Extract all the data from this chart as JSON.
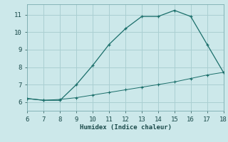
{
  "xlabel": "Humidex (Indice chaleur)",
  "ylabel": "",
  "bg_color": "#cce8ea",
  "grid_color": "#aacfd2",
  "line_color": "#1a6e6a",
  "xlim": [
    6,
    18
  ],
  "ylim": [
    5.5,
    11.6
  ],
  "xticks": [
    6,
    7,
    8,
    9,
    10,
    11,
    12,
    13,
    14,
    15,
    16,
    17,
    18
  ],
  "yticks": [
    6,
    7,
    8,
    9,
    10,
    11
  ],
  "line1_x": [
    6,
    7,
    8,
    9,
    10,
    11,
    12,
    13,
    14,
    15,
    16,
    17,
    18
  ],
  "line1_y": [
    6.2,
    6.1,
    6.1,
    7.0,
    8.1,
    9.3,
    10.2,
    10.9,
    10.9,
    11.25,
    10.9,
    9.3,
    7.7
  ],
  "line2_x": [
    6,
    7,
    8,
    9,
    10,
    11,
    12,
    13,
    14,
    15,
    16,
    17,
    18
  ],
  "line2_y": [
    6.2,
    6.1,
    6.15,
    6.25,
    6.4,
    6.55,
    6.7,
    6.85,
    7.0,
    7.15,
    7.35,
    7.55,
    7.7
  ]
}
